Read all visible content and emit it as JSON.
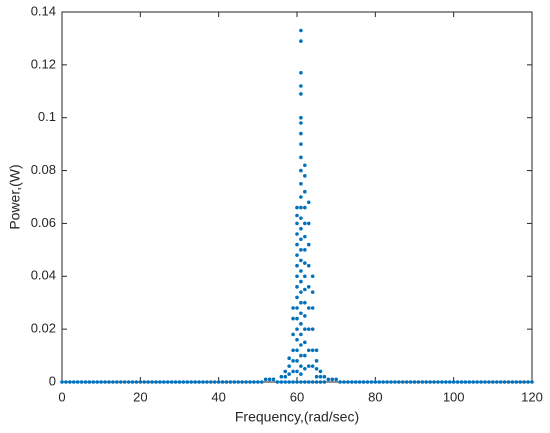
{
  "chart_data": {
    "type": "scatter",
    "xlabel": "Frequency,(rad/sec)",
    "ylabel": "Power,(W)",
    "color": "#0072bd",
    "xlim": [
      0,
      120
    ],
    "ylim": [
      0,
      0.14
    ],
    "xticks": [
      0,
      20,
      40,
      60,
      80,
      100,
      120
    ],
    "yticks": [
      0,
      0.02,
      0.04,
      0.06,
      0.08,
      0.1,
      0.12,
      0.14
    ],
    "grid": false,
    "x": [
      0,
      1,
      2,
      3,
      4,
      5,
      6,
      7,
      8,
      9,
      10,
      11,
      12,
      13,
      14,
      15,
      16,
      17,
      18,
      19,
      20,
      21,
      22,
      23,
      24,
      25,
      26,
      27,
      28,
      29,
      30,
      31,
      32,
      33,
      34,
      35,
      36,
      37,
      38,
      39,
      40,
      41,
      42,
      43,
      44,
      45,
      46,
      47,
      48,
      49,
      50,
      51,
      52,
      53,
      54,
      55,
      56,
      57,
      58,
      59,
      60,
      61,
      62,
      63,
      64,
      65,
      66,
      67,
      68,
      69,
      70,
      71,
      72,
      73,
      74,
      75,
      76,
      77,
      78,
      79,
      80,
      81,
      82,
      83,
      84,
      85,
      86,
      87,
      88,
      89,
      90,
      91,
      92,
      93,
      94,
      95,
      96,
      97,
      98,
      99,
      100,
      101,
      102,
      103,
      104,
      105,
      106,
      107,
      108,
      109,
      110,
      111,
      112,
      113,
      114,
      115,
      116,
      117,
      118,
      119,
      120,
      61,
      61,
      61,
      61,
      61,
      61,
      61,
      61,
      61,
      61,
      61,
      61,
      61,
      61,
      61,
      61,
      61,
      61,
      61,
      61,
      61,
      61,
      61,
      61,
      61,
      61,
      61,
      61,
      61,
      61,
      60,
      60,
      60,
      60,
      60,
      60,
      60,
      60,
      60,
      60,
      60,
      60,
      60,
      60,
      60,
      60,
      60,
      62,
      62,
      62,
      62,
      62,
      62,
      62,
      62,
      62,
      62,
      62,
      62,
      62,
      62,
      62,
      62,
      63,
      63,
      63,
      63,
      63,
      63,
      63,
      63,
      63,
      59,
      59,
      59,
      59,
      59,
      59,
      64,
      64,
      64,
      64,
      64,
      64,
      65,
      65,
      65,
      65,
      58,
      58,
      58,
      57,
      57,
      56,
      66,
      66,
      67
    ],
    "y": [
      0,
      0,
      0,
      0,
      0,
      0,
      0,
      0,
      0,
      0,
      0,
      0,
      0,
      0,
      0,
      0,
      0,
      0,
      0,
      0,
      0,
      0,
      0,
      0,
      0,
      0,
      0,
      0,
      0,
      0,
      0,
      0,
      0,
      0,
      0,
      0,
      0,
      0,
      0,
      0,
      0,
      0,
      0,
      0,
      0,
      0,
      0,
      0,
      0,
      0,
      0,
      0,
      0.001,
      0.001,
      0.001,
      0,
      0,
      0,
      0,
      0,
      0,
      0,
      0,
      0,
      0,
      0,
      0,
      0,
      0.001,
      0.001,
      0.001,
      0,
      0,
      0,
      0,
      0,
      0,
      0,
      0,
      0,
      0,
      0,
      0,
      0,
      0,
      0,
      0,
      0,
      0,
      0,
      0,
      0,
      0,
      0,
      0,
      0,
      0,
      0,
      0,
      0,
      0,
      0,
      0,
      0,
      0,
      0,
      0,
      0,
      0,
      0,
      0,
      0,
      0,
      0,
      0,
      0,
      0,
      0,
      0,
      0,
      0,
      0.133,
      0.129,
      0.117,
      0.112,
      0.109,
      0.1,
      0.098,
      0.094,
      0.09,
      0.085,
      0.08,
      0.075,
      0.07,
      0.066,
      0.062,
      0.058,
      0.054,
      0.05,
      0.046,
      0.042,
      0.038,
      0.034,
      0.03,
      0.026,
      0.022,
      0.018,
      0.014,
      0.01,
      0.006,
      0.003,
      0.066,
      0.063,
      0.06,
      0.056,
      0.052,
      0.048,
      0.044,
      0.04,
      0.036,
      0.032,
      0.028,
      0.024,
      0.02,
      0.016,
      0.012,
      0.008,
      0.004,
      0.082,
      0.078,
      0.072,
      0.066,
      0.06,
      0.055,
      0.05,
      0.045,
      0.04,
      0.035,
      0.03,
      0.025,
      0.02,
      0.015,
      0.01,
      0.005,
      0.068,
      0.06,
      0.052,
      0.044,
      0.036,
      0.028,
      0.02,
      0.012,
      0.006,
      0.028,
      0.024,
      0.018,
      0.012,
      0.008,
      0.004,
      0.04,
      0.034,
      0.028,
      0.02,
      0.012,
      0.006,
      0.012,
      0.008,
      0.005,
      0.002,
      0.009,
      0.006,
      0.003,
      0.004,
      0.002,
      0.002,
      0.004,
      0.002,
      0.002
    ]
  }
}
